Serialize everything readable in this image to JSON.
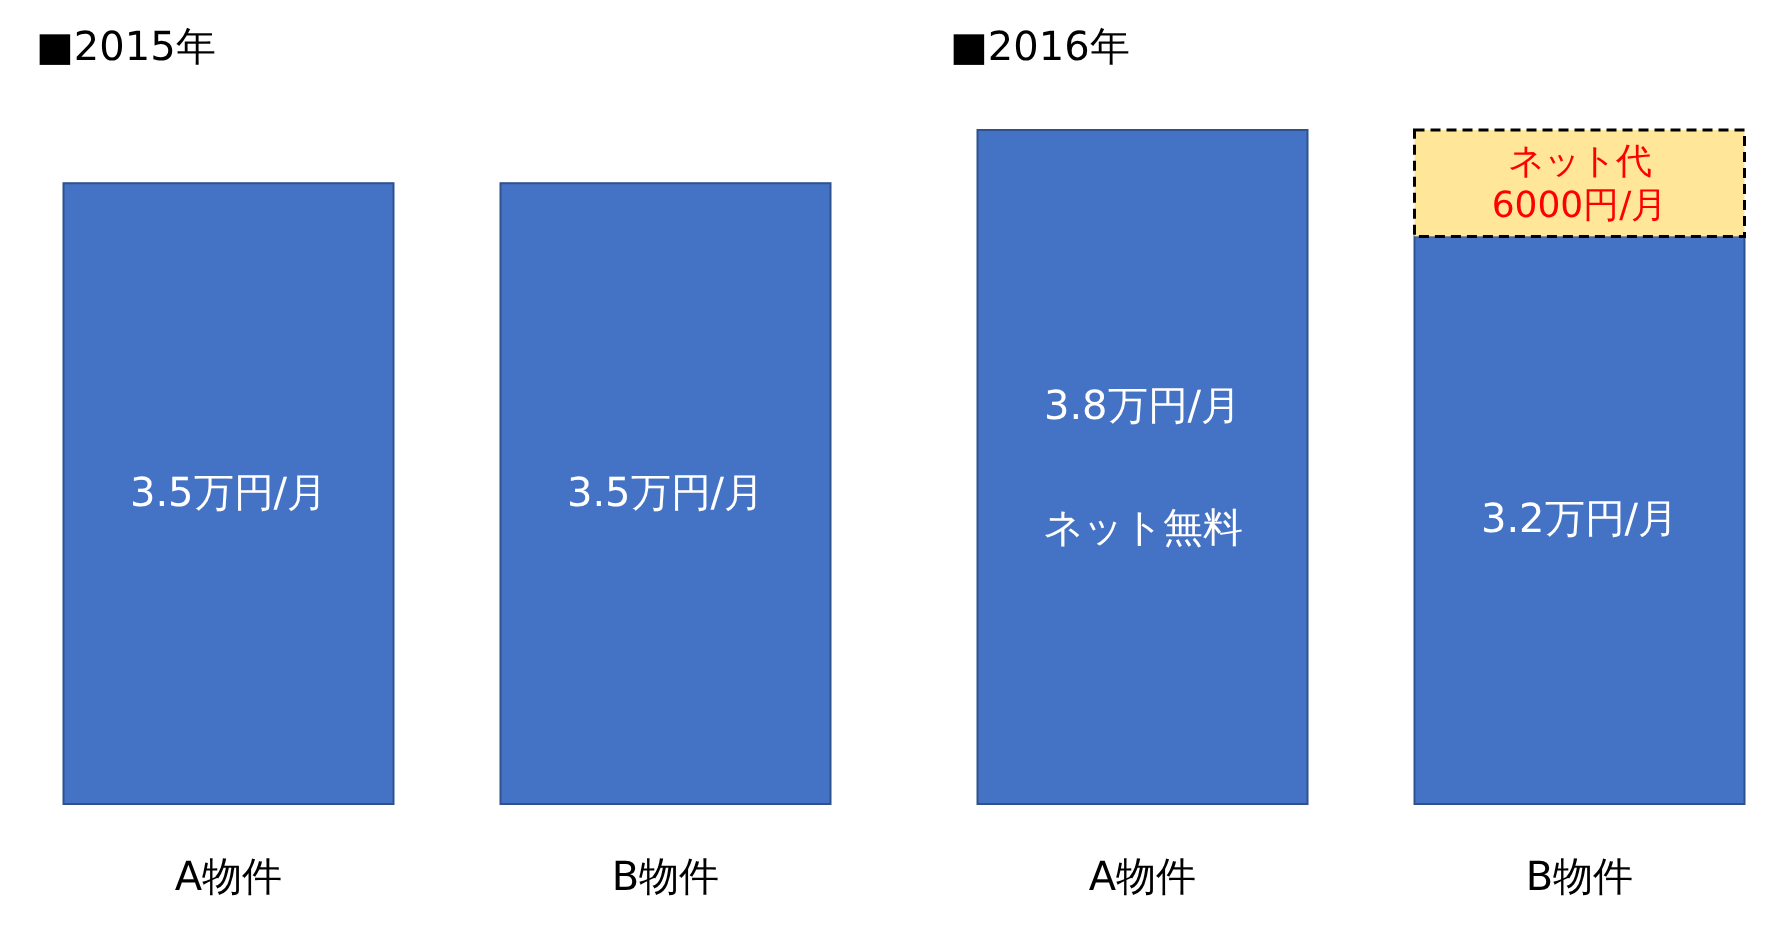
{
  "chart_data": [
    {
      "type": "bar",
      "title": "■2015年",
      "categories": [
        "A物件",
        "B物件"
      ],
      "series": [
        {
          "color": "#4472c4",
          "values": [
            3.5,
            3.5
          ],
          "value_labels": [
            "3.5万円/月",
            "3.5万円/月"
          ]
        }
      ]
    },
    {
      "type": "bar",
      "title": "■2016年",
      "categories": [
        "A物件",
        "B物件"
      ],
      "stacked": true,
      "series": [
        {
          "color": "#4472c4",
          "values": [
            3.8,
            3.2
          ],
          "value_labels": [
            "3.8万円/月",
            "3.2万円/月"
          ]
        },
        {
          "color": "#ffe699",
          "values": [
            null,
            0.6
          ],
          "value_labels": [
            null,
            "ネット代\n6000円/月"
          ],
          "line_style": "dashed"
        }
      ],
      "annotations": [
        "ネット無料"
      ]
    }
  ]
}
